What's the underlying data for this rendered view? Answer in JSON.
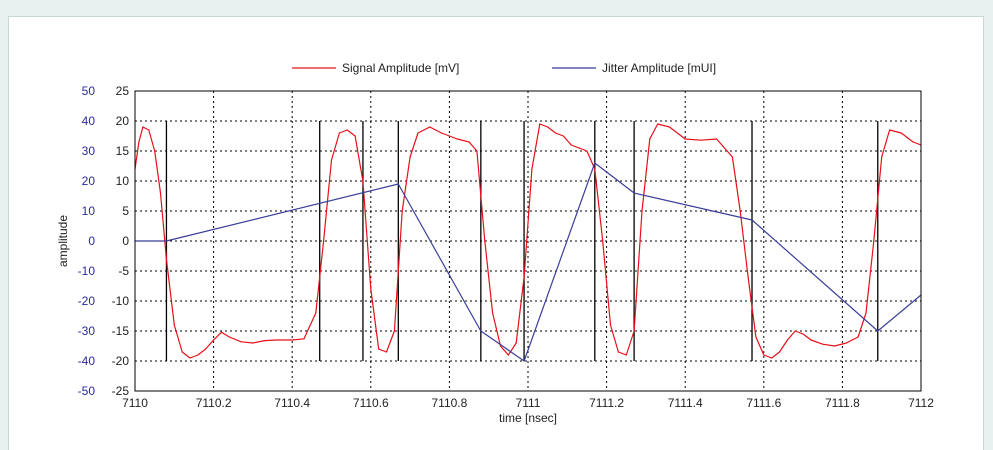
{
  "chart_data": {
    "type": "line",
    "title": "",
    "xlabel": "time [nsec]",
    "ylabel": "amplitude",
    "xlim": [
      7110,
      7112
    ],
    "ylim_left": [
      -50,
      50
    ],
    "ylim_right": [
      -25,
      25
    ],
    "x_ticks": [
      "7110",
      "7110.2",
      "7110.4",
      "7110.6",
      "7110.8",
      "7111",
      "7111.2",
      "7111.4",
      "7111.6",
      "7111.8",
      "7112"
    ],
    "y_ticks_left": [
      "50",
      "40",
      "30",
      "20",
      "10",
      "0",
      "-10",
      "-20",
      "-30",
      "-40",
      "-50"
    ],
    "y_ticks_right": [
      "25",
      "20",
      "15",
      "10",
      "5",
      "0",
      "-5",
      "-10",
      "-15",
      "-20",
      "-25"
    ],
    "grid": true,
    "legend_position": "top",
    "colors": {
      "signal": "#e8101a",
      "jitter": "#3b3f9a",
      "markers": "#000000",
      "left_ticks": "#2a2a9c"
    },
    "series": [
      {
        "name": "Signal Amplitude [mV]",
        "axis": "right",
        "x": [
          7110.0,
          7110.01,
          7110.02,
          7110.035,
          7110.05,
          7110.065,
          7110.08,
          7110.1,
          7110.12,
          7110.14,
          7110.16,
          7110.18,
          7110.2,
          7110.22,
          7110.24,
          7110.27,
          7110.3,
          7110.33,
          7110.36,
          7110.4,
          7110.43,
          7110.46,
          7110.48,
          7110.5,
          7110.52,
          7110.54,
          7110.56,
          7110.58,
          7110.6,
          7110.62,
          7110.64,
          7110.66,
          7110.68,
          7110.7,
          7110.72,
          7110.75,
          7110.78,
          7110.82,
          7110.85,
          7110.87,
          7110.89,
          7110.91,
          7110.93,
          7110.95,
          7110.97,
          7110.99,
          7111.01,
          7111.03,
          7111.05,
          7111.07,
          7111.09,
          7111.11,
          7111.13,
          7111.15,
          7111.17,
          7111.19,
          7111.21,
          7111.23,
          7111.25,
          7111.27,
          7111.29,
          7111.31,
          7111.33,
          7111.36,
          7111.4,
          7111.44,
          7111.48,
          7111.52,
          7111.54,
          7111.56,
          7111.58,
          7111.6,
          7111.62,
          7111.64,
          7111.66,
          7111.68,
          7111.7,
          7111.72,
          7111.75,
          7111.78,
          7111.81,
          7111.84,
          7111.86,
          7111.88,
          7111.9,
          7111.92,
          7111.95,
          7111.98,
          7112.0
        ],
        "values": [
          12.0,
          16.5,
          19.0,
          18.5,
          15.0,
          8.0,
          -3.0,
          -14.0,
          -18.5,
          -19.5,
          -19.0,
          -18.0,
          -16.5,
          -15.2,
          -16.0,
          -16.8,
          -17.0,
          -16.6,
          -16.5,
          -16.5,
          -16.3,
          -12.0,
          0.0,
          13.5,
          18.0,
          18.5,
          17.5,
          10.0,
          -8.0,
          -18.0,
          -18.5,
          -15.0,
          5.0,
          14.0,
          18.0,
          19.0,
          18.0,
          17.0,
          16.5,
          15.0,
          0.0,
          -12.0,
          -17.5,
          -19.0,
          -17.0,
          -6.0,
          12.0,
          19.5,
          19.0,
          18.0,
          17.5,
          16.0,
          15.5,
          15.0,
          12.0,
          0.0,
          -14.0,
          -18.5,
          -19.0,
          -15.0,
          5.0,
          17.0,
          19.5,
          19.0,
          17.0,
          16.8,
          17.0,
          14.0,
          5.0,
          -6.0,
          -16.0,
          -19.0,
          -19.5,
          -18.5,
          -16.5,
          -15.0,
          -15.5,
          -16.5,
          -17.2,
          -17.5,
          -17.0,
          -16.0,
          -12.0,
          0.0,
          14.0,
          18.5,
          18.0,
          16.5,
          16.0
        ]
      },
      {
        "name": "Jitter Amplitude [mUI]",
        "axis": "left",
        "x": [
          7110.0,
          7110.08,
          7110.67,
          7110.88,
          7110.99,
          7111.17,
          7111.27,
          7111.57,
          7111.89,
          7112.0
        ],
        "values": [
          0.0,
          0.0,
          19.0,
          -30.0,
          -40.0,
          26.0,
          16.0,
          7.0,
          -30.0,
          -18.0
        ]
      }
    ],
    "event_markers_x": [
      7110.08,
      7110.47,
      7110.58,
      7110.67,
      7110.88,
      7110.99,
      7111.17,
      7111.27,
      7111.57,
      7111.89
    ],
    "event_markers_range": [
      -20,
      20
    ]
  }
}
